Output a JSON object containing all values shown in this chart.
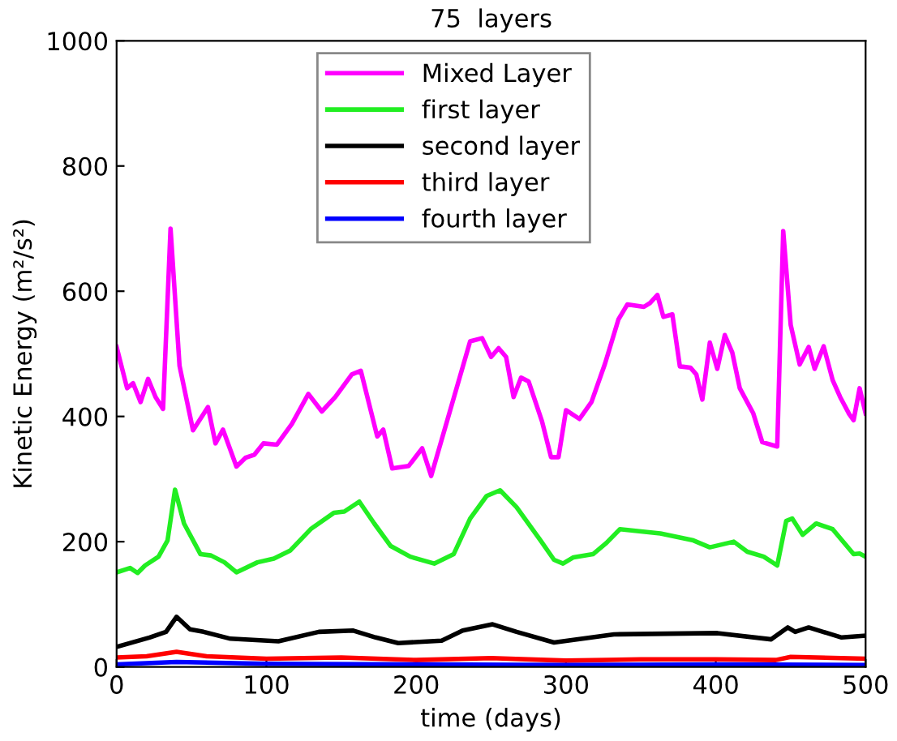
{
  "chart_data": {
    "type": "line",
    "title": "75  layers",
    "xlabel": "time (days)",
    "ylabel": "Kinetic Energy (m²/s²)",
    "xlim": [
      0,
      500
    ],
    "ylim": [
      0,
      1000
    ],
    "xticks": [
      0,
      100,
      200,
      300,
      400,
      500
    ],
    "yticks": [
      0,
      200,
      400,
      600,
      800,
      1000
    ],
    "grid": false,
    "legend": "top",
    "marker": "none",
    "line_style": "solid",
    "series": [
      {
        "name": "Mixed Layer",
        "color": "#ff00ff",
        "x": [
          0,
          7,
          11,
          16,
          21,
          26,
          31,
          36,
          42,
          51,
          61,
          66,
          71,
          80,
          86,
          92,
          98,
          107,
          117,
          128,
          137,
          146,
          157,
          163,
          174,
          178,
          184,
          195,
          204,
          210,
          236,
          244,
          250,
          255,
          260,
          265,
          270,
          275,
          284,
          290,
          295,
          300,
          309,
          317,
          326,
          335,
          341,
          352,
          356,
          361,
          365,
          371,
          376,
          383,
          387,
          391,
          396,
          401,
          406,
          411,
          416,
          425,
          431,
          441,
          445,
          450,
          456,
          462,
          466,
          472,
          478,
          483,
          489,
          492,
          496,
          500
        ],
        "values": [
          511,
          445,
          453,
          423,
          460,
          431,
          412,
          700,
          481,
          378,
          415,
          357,
          379,
          320,
          334,
          339,
          357,
          355,
          388,
          436,
          408,
          431,
          467,
          473,
          368,
          379,
          317,
          321,
          349,
          305,
          520,
          525,
          495,
          509,
          495,
          431,
          462,
          456,
          392,
          335,
          335,
          410,
          396,
          423,
          484,
          555,
          579,
          575,
          581,
          594,
          559,
          563,
          480,
          478,
          467,
          427,
          518,
          476,
          530,
          502,
          445,
          405,
          359,
          352,
          696,
          546,
          483,
          511,
          476,
          512,
          458,
          431,
          404,
          394,
          445,
          405
        ]
      },
      {
        "name": "first layer",
        "color": "#22ee22",
        "x": [
          0,
          9,
          14,
          19,
          28,
          34,
          39,
          45,
          56,
          63,
          72,
          80,
          94,
          105,
          116,
          130,
          145,
          152,
          162,
          172,
          183,
          196,
          212,
          225,
          236,
          247,
          256,
          267,
          283,
          292,
          298,
          305,
          318,
          327,
          336,
          363,
          385,
          396,
          412,
          421,
          432,
          441,
          447,
          451,
          458,
          467,
          478,
          492,
          496,
          500
        ],
        "values": [
          151,
          158,
          150,
          162,
          176,
          202,
          283,
          229,
          180,
          178,
          167,
          151,
          167,
          173,
          186,
          221,
          246,
          248,
          264,
          229,
          193,
          176,
          165,
          180,
          237,
          273,
          282,
          255,
          202,
          171,
          165,
          175,
          180,
          198,
          220,
          213,
          202,
          191,
          200,
          184,
          176,
          162,
          233,
          237,
          211,
          229,
          220,
          180,
          181,
          176
        ]
      },
      {
        "name": "second layer",
        "color": "#000000",
        "x": [
          0,
          22,
          33,
          40,
          49,
          58,
          76,
          108,
          135,
          158,
          173,
          188,
          217,
          231,
          251,
          267,
          292,
          332,
          401,
          437,
          448,
          453,
          462,
          484,
          500
        ],
        "values": [
          32,
          47,
          56,
          80,
          60,
          56,
          45,
          41,
          56,
          58,
          47,
          38,
          42,
          58,
          68,
          56,
          39,
          52,
          54,
          44,
          63,
          56,
          63,
          47,
          50
        ]
      },
      {
        "name": "third layer",
        "color": "#ff0000",
        "x": [
          0,
          20,
          40,
          60,
          100,
          150,
          200,
          250,
          300,
          350,
          400,
          440,
          450,
          500
        ],
        "values": [
          15,
          17,
          24,
          17,
          13,
          15,
          11,
          14,
          10,
          12,
          12,
          11,
          16,
          13
        ]
      },
      {
        "name": "fourth layer",
        "color": "#0000ff",
        "x": [
          0,
          40,
          100,
          200,
          300,
          400,
          500
        ],
        "values": [
          4,
          8,
          5,
          4,
          3,
          4,
          3
        ]
      }
    ]
  }
}
